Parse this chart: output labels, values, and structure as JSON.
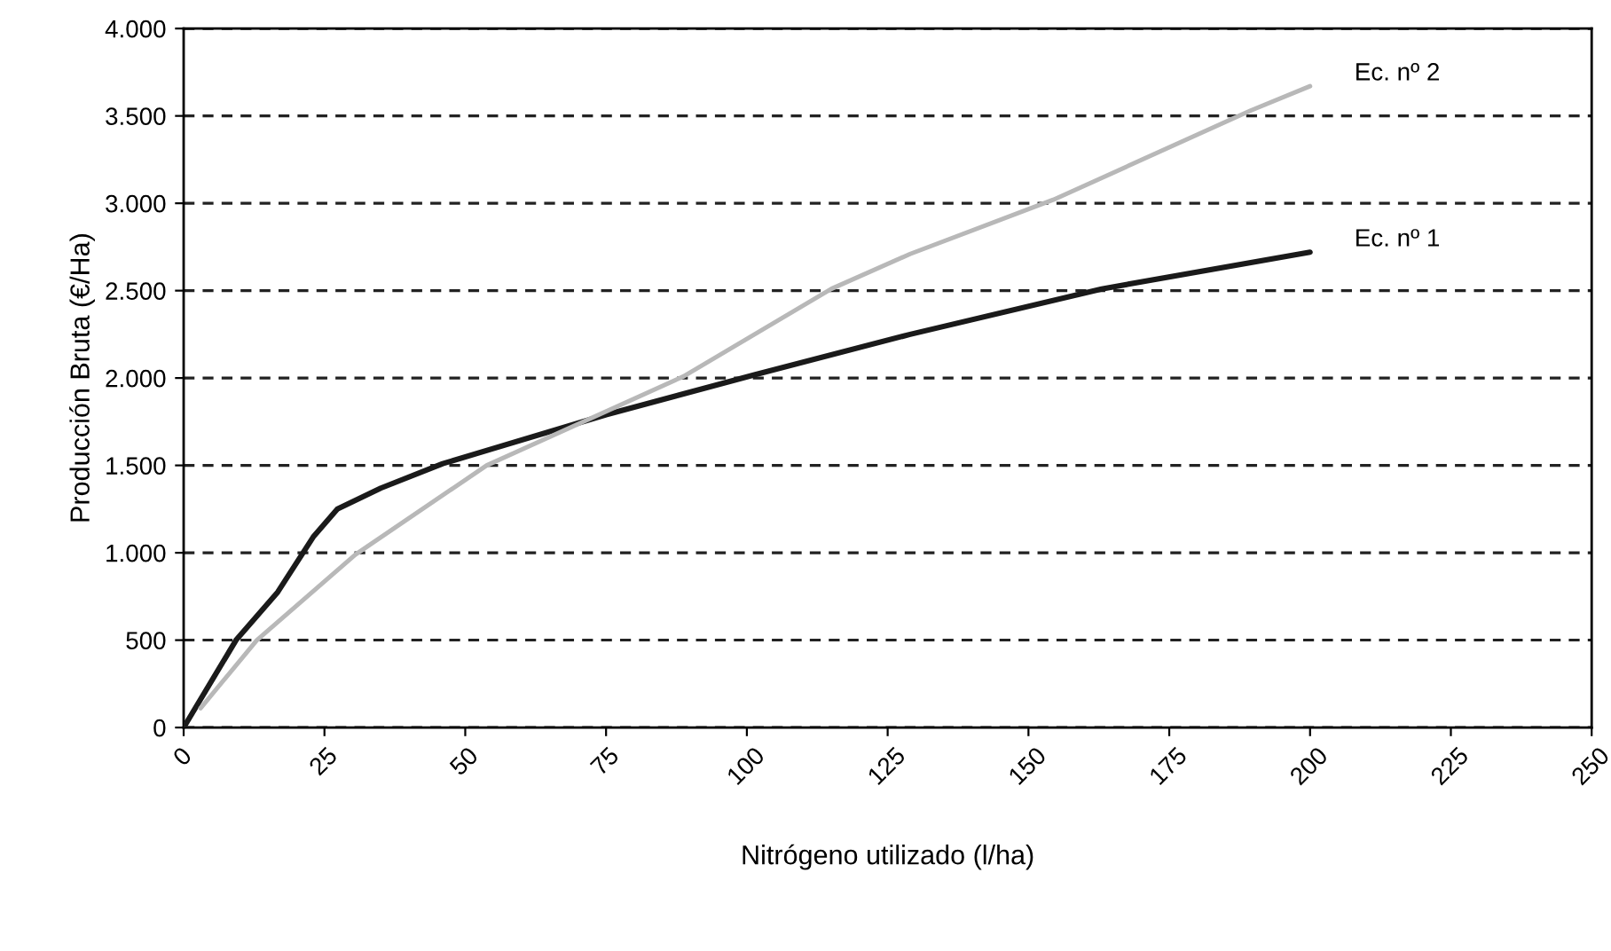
{
  "chart_data": {
    "type": "line",
    "xlabel": "Nitrógeno utilizado (l/ha)",
    "ylabel": "Producción Bruta (€/Ha)",
    "xlim": [
      0,
      250
    ],
    "xticks": [
      0,
      25,
      50,
      75,
      100,
      125,
      150,
      175,
      200,
      225,
      250
    ],
    "ylim": [
      0,
      4000
    ],
    "yticks": [
      0,
      500,
      {
        "value": 1000,
        "label": "1.000"
      },
      {
        "value": 1500,
        "label": "1.500"
      },
      {
        "value": 2000,
        "label": "2.000"
      },
      {
        "value": 2500,
        "label": "2.500"
      },
      {
        "value": 3000,
        "label": "3.000"
      },
      {
        "value": 3500,
        "label": "3.500"
      },
      {
        "value": 4000,
        "label": "4.000"
      }
    ],
    "grid": "y",
    "legend": false,
    "marker": "none",
    "line_style": "solid",
    "series": [
      {
        "name": "Ec. nº 1",
        "color": "#1a1a1a",
        "x": [
          0,
          9.3,
          16.7,
          23,
          27.3,
          35,
          46,
          75,
          101.5,
          129,
          163,
          200
        ],
        "values": [
          0,
          500,
          775,
          1090,
          1250,
          1370,
          1510,
          1790,
          2020,
          2250,
          2510,
          2720
        ]
      },
      {
        "name": "Ec. nº 2",
        "color": "#b8b8b8",
        "x": [
          3,
          13,
          30.5,
          53.8,
          88.8,
          115,
          129,
          154.4,
          189.4,
          200
        ],
        "values": [
          110,
          500,
          990,
          1500,
          2010,
          2510,
          2710,
          3020,
          3530,
          3670
        ]
      }
    ]
  }
}
